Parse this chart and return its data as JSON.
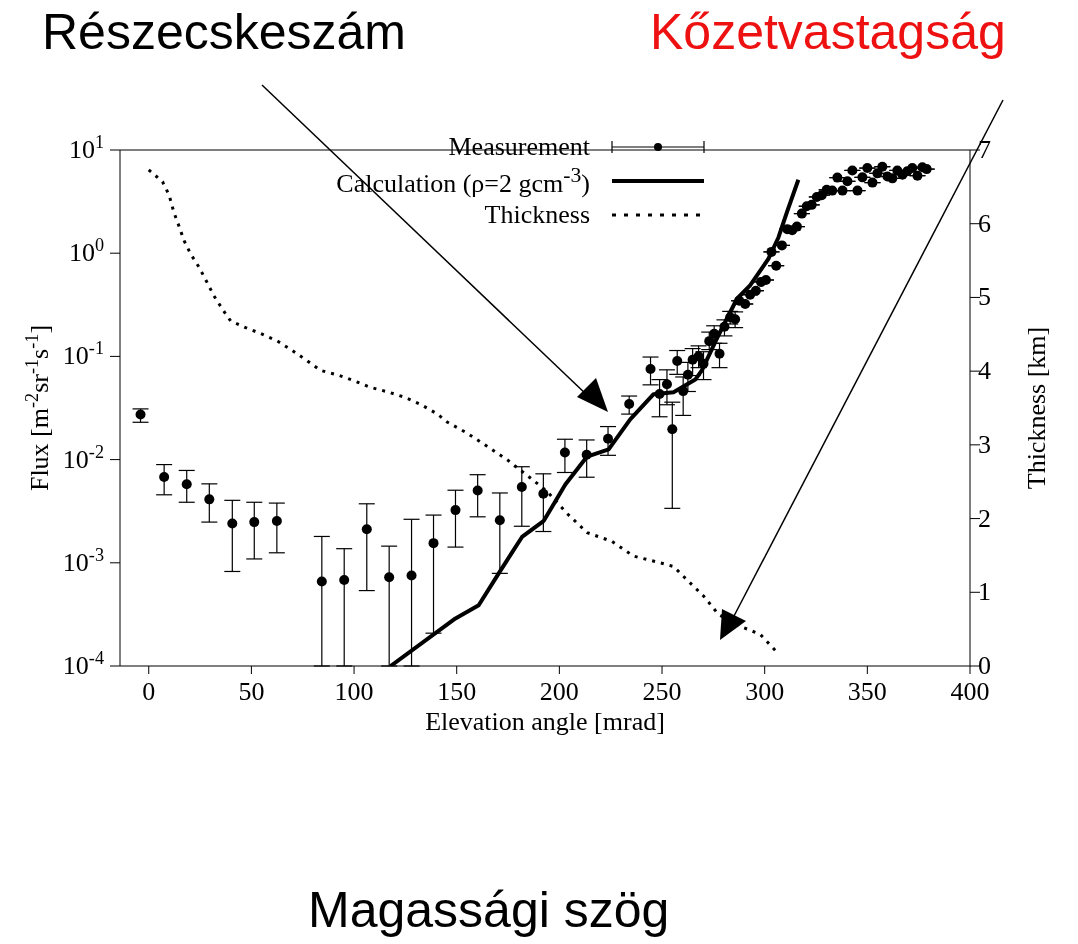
{
  "chart_data": {
    "type": "scatter",
    "xlabel": "Elevation angle [mrad]",
    "ylabel": "Flux [m$^{-2}$sr$^{-1}$s$^{-1}$]",
    "y2label": "Thickness [km]",
    "annotations": [
      "Részecskeszám",
      "Kőzetvastagság",
      "Magassági szög"
    ],
    "xlim": [
      -14,
      400
    ],
    "xticks": [
      0,
      50,
      100,
      150,
      200,
      250,
      300,
      350,
      400
    ],
    "ylim": [
      0.0001,
      10
    ],
    "yticks": [
      {
        "value": 0.0001,
        "label": "10$^{-4}$"
      },
      {
        "value": 0.001,
        "label": "10$^{-3}$"
      },
      {
        "value": 0.01,
        "label": "10$^{-2}$"
      },
      {
        "value": 0.1,
        "label": "10$^{-1}$"
      },
      {
        "value": 1,
        "label": "10$^{0}$"
      },
      {
        "value": 10,
        "label": "10$^{1}$"
      }
    ],
    "y2lim": [
      0,
      7
    ],
    "y2ticks": [
      0,
      1,
      2,
      3,
      4,
      5,
      6,
      7
    ],
    "log": true,
    "legend": "top right",
    "series": [
      {
        "name": "Measurement",
        "color": "#000000",
        "marker": "circle",
        "x": [
          -4,
          7.5,
          18.5,
          29.5,
          40.7,
          51.4,
          62.4,
          84.3,
          95.2,
          106.2,
          117.1,
          128,
          138.7,
          149.4,
          160.2,
          171,
          181.7,
          192.2,
          202.7,
          213.3,
          223.7,
          234,
          244.4,
          248.8,
          252.4,
          255,
          257.4,
          260.3,
          262.6,
          264.9,
          267.8,
          270.2,
          273,
          275.4,
          278,
          280.4,
          283.2,
          285.6,
          287.6,
          290.5,
          292.9,
          295.7,
          298.2,
          300.6,
          303.3,
          305.6,
          308.4,
          311,
          313.4,
          315.7,
          318.1,
          320.5,
          322.9,
          325.4,
          327.8,
          330.2,
          332.9,
          335.4,
          337.9,
          340.3,
          342.7,
          345.2,
          347.6,
          350,
          352.5,
          354.9,
          357.3,
          359.8,
          362.2,
          364.6,
          367.1,
          369.5,
          371.9,
          374.4,
          376.8,
          378.9
        ],
        "values": [
          0.0274,
          0.00678,
          0.00578,
          0.00412,
          0.0024,
          0.00248,
          0.00254,
          0.00066,
          0.00068,
          0.00211,
          0.000723,
          0.000754,
          0.00155,
          0.00324,
          0.00501,
          0.00258,
          0.00542,
          0.00467,
          0.0117,
          0.01115,
          0.0159,
          0.0346,
          0.0755,
          0.0432,
          0.0538,
          0.0197,
          0.0902,
          0.0461,
          0.0664,
          0.0929,
          0.1004,
          0.0851,
          0.1406,
          0.166,
          0.106,
          0.194,
          0.24,
          0.229,
          0.346,
          0.322,
          0.396,
          0.433,
          0.527,
          0.55,
          1.03,
          0.757,
          1.19,
          1.71,
          1.67,
          1.81,
          2.42,
          2.85,
          2.94,
          3.51,
          3.65,
          4.11,
          4.04,
          5.4,
          4.04,
          4.97,
          6.34,
          4.04,
          5.43,
          6.68,
          4.83,
          5.94,
          6.89,
          5.53,
          5.31,
          6.34,
          5.77,
          6.22,
          6.68,
          5.64,
          6.81,
          6.53
        ],
        "errors": [
          [
            0.023,
            0.031
          ],
          [
            0.00456,
            0.00895
          ],
          [
            0.00386,
            0.00785
          ],
          [
            0.00248,
            0.00582
          ],
          [
            0.000824,
            0.00403
          ],
          [
            0.00109,
            0.00386
          ],
          [
            0.00125,
            0.00379
          ],
          [
            0.0001,
            0.0018
          ],
          [
            0.0001,
            0.00137
          ],
          [
            0.000538,
            0.00373
          ],
          [
            0.0001,
            0.00145
          ],
          [
            0.0001,
            0.00264
          ],
          [
            0.000208,
            0.0029
          ],
          [
            0.00142,
            0.00505
          ],
          [
            0.00279,
            0.00714
          ],
          [
            0.00079,
            0.00475
          ],
          [
            0.00226,
            0.00853
          ],
          [
            0.00201,
            0.00728
          ],
          [
            0.0075,
            0.01575
          ],
          [
            0.00675,
            0.0155
          ],
          [
            0.011,
            0.0209
          ],
          [
            0.0276,
            0.0413
          ],
          [
            0.053,
            0.0986
          ],
          [
            0.026,
            0.0596
          ],
          [
            0.034,
            0.0741
          ],
          [
            0.00337,
            0.036
          ],
          [
            0.067,
            0.114
          ],
          [
            0.0268,
            0.0632
          ],
          [
            0.0457,
            0.0875
          ],
          [
            0.0652,
            0.119
          ],
          [
            0.0778,
            0.1265
          ],
          [
            0.0596,
            0.111
          ],
          [
            0.1164,
            0.172
          ],
          [
            0.134,
            0.198
          ],
          [
            0.0778,
            0.134
          ],
          [
            0.158,
            0.226
          ],
          [
            0.206,
            0.273
          ],
          [
            0.19,
            0.27
          ],
          null,
          null,
          null,
          null,
          null,
          null,
          null,
          null,
          null,
          null,
          null,
          null,
          null,
          null,
          null,
          null,
          null,
          null,
          null,
          null,
          null,
          null,
          null,
          null,
          null,
          null,
          null,
          null,
          null,
          null,
          null,
          null,
          null,
          null,
          null,
          null,
          null,
          null
        ]
      },
      {
        "name": "Calculation (ρ=2 gcm$^{-3}$)",
        "type": "line",
        "color": "#000000",
        "marker": "none",
        "line_style": "solid",
        "x": [
          117.8,
          149.4,
          160.7,
          171.3,
          181.8,
          192.4,
          202.9,
          213.5,
          224,
          234.5,
          245.9,
          255.6,
          266.2,
          269.4,
          276.7,
          286.5,
          292.9,
          301.8,
          306.7,
          310.8,
          316.4
        ],
        "values": [
          0.0001,
          0.000289,
          0.000388,
          0.00084,
          0.00178,
          0.00255,
          0.00574,
          0.0107,
          0.01256,
          0.0245,
          0.043,
          0.0449,
          0.0596,
          0.0733,
          0.149,
          0.362,
          0.488,
          0.881,
          1.42,
          2.49,
          5.15
        ]
      },
      {
        "name": "Thickness",
        "type": "line",
        "axis": "y2",
        "color": "#000000",
        "marker": "none",
        "line_style": "dotted",
        "x": [
          0,
          6.7,
          9.9,
          12.3,
          14.7,
          17.2,
          20.4,
          24.5,
          28.1,
          31.8,
          35.9,
          39.9,
          47.2,
          54.5,
          62.6,
          69.9,
          77.2,
          83.7,
          91.8,
          99.9,
          108,
          116.2,
          124.2,
          132.4,
          140.5,
          145.3,
          155,
          164.8,
          174.5,
          185.9,
          194,
          203.7,
          213.5,
          225.6,
          236.2,
          249.1,
          255.6,
          262.1,
          270.2,
          277.5,
          288,
          297.8,
          306.6
        ],
        "values": [
          6.73,
          6.57,
          6.39,
          6.15,
          5.97,
          5.77,
          5.59,
          5.41,
          5.22,
          5.02,
          4.84,
          4.68,
          4.59,
          4.51,
          4.41,
          4.28,
          4.14,
          4.01,
          3.95,
          3.87,
          3.78,
          3.72,
          3.65,
          3.55,
          3.42,
          3.31,
          3.16,
          2.98,
          2.8,
          2.55,
          2.37,
          2.07,
          1.81,
          1.69,
          1.49,
          1.4,
          1.35,
          1.17,
          0.95,
          0.7,
          0.54,
          0.43,
          0.17
        ]
      }
    ]
  }
}
